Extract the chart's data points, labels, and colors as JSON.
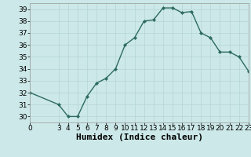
{
  "x": [
    0,
    3,
    4,
    5,
    6,
    7,
    8,
    9,
    10,
    11,
    12,
    13,
    14,
    15,
    16,
    17,
    18,
    19,
    20,
    21,
    22,
    23
  ],
  "y": [
    32,
    31,
    30,
    30,
    31.7,
    32.8,
    33.2,
    34,
    36,
    36.6,
    38,
    38.1,
    39.1,
    39.1,
    38.7,
    38.8,
    37,
    36.6,
    35.4,
    35.4,
    35,
    33.8
  ],
  "line_color": "#2d6b5e",
  "marker": "D",
  "marker_size": 2.0,
  "bg_color": "#cce8e8",
  "grid_color": "#b8d8d8",
  "xlabel": "Humidex (Indice chaleur)",
  "xlim": [
    0,
    23
  ],
  "ylim": [
    29.5,
    39.5
  ],
  "xticks": [
    0,
    3,
    4,
    5,
    6,
    7,
    8,
    9,
    10,
    11,
    12,
    13,
    14,
    15,
    16,
    17,
    18,
    19,
    20,
    21,
    22,
    23
  ],
  "yticks": [
    30,
    31,
    32,
    33,
    34,
    35,
    36,
    37,
    38,
    39
  ],
  "tick_fontsize": 6.5,
  "xlabel_fontsize": 8.0
}
